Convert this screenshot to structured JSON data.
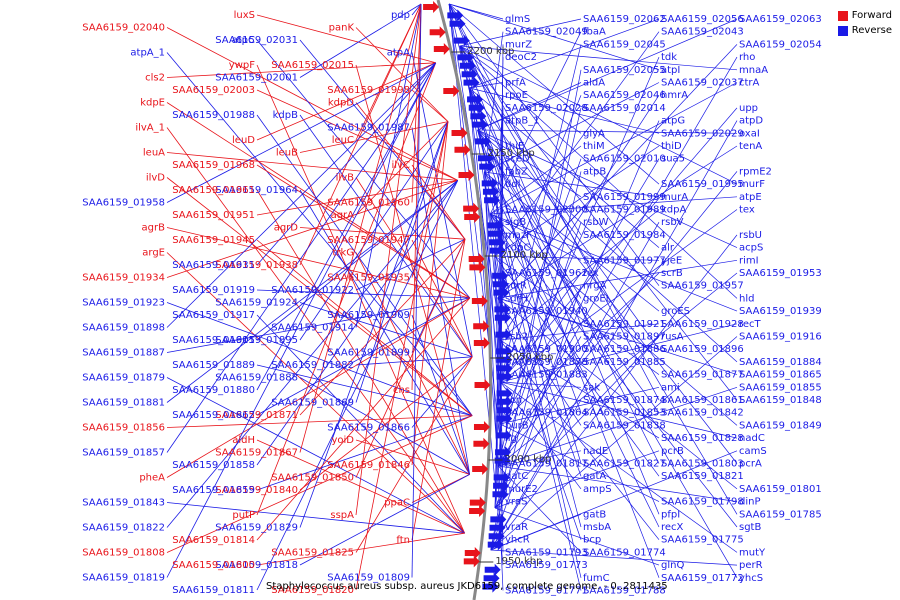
{
  "legend": [
    {
      "label": "Forward",
      "color": "#e8141b"
    },
    {
      "label": "Reverse",
      "color": "#1a1ae6"
    }
  ],
  "caption": "Staphylococcus aureus subsp. aureus JKD6159, complete genome. - 0..2811435",
  "colors": {
    "forward": "#e8141b",
    "reverse": "#1a1ae6",
    "backbone": "#888888"
  },
  "ticks": [
    "2200 kbp",
    "2150 kbp",
    "2100 kbp",
    "2050 kbp",
    "2000 kbp",
    "1950 kbp"
  ],
  "left_labels": [
    {
      "t": "pdp",
      "s": "r"
    },
    {
      "t": "luxS",
      "s": "f"
    },
    {
      "t": "panK",
      "s": "f"
    },
    {
      "t": "SAA6159_02040",
      "s": "f"
    },
    {
      "t": "SAA6159_02031",
      "s": "r"
    },
    {
      "t": "atpC",
      "s": "r"
    },
    {
      "t": "atpA",
      "s": "r"
    },
    {
      "t": "atpA_1",
      "s": "r"
    },
    {
      "t": "SAA6159_02015",
      "s": "f"
    },
    {
      "t": "ywpF",
      "s": "f"
    },
    {
      "t": "SAA6159_02001",
      "s": "r"
    },
    {
      "t": "cls2",
      "s": "f"
    },
    {
      "t": "SAA6159_01998",
      "s": "f"
    },
    {
      "t": "SAA6159_02003",
      "s": "f"
    },
    {
      "t": "kdpD",
      "s": "f"
    },
    {
      "t": "kdpE",
      "s": "f"
    },
    {
      "t": "kdpB",
      "s": "r"
    },
    {
      "t": "SAA6159_01988",
      "s": "r"
    },
    {
      "t": "SAA6159_01987",
      "s": "r"
    },
    {
      "t": "ilvA_1",
      "s": "f"
    },
    {
      "t": "leuC",
      "s": "f"
    },
    {
      "t": "leuD",
      "s": "f"
    },
    {
      "t": "leuB",
      "s": "f"
    },
    {
      "t": "leuA",
      "s": "f"
    },
    {
      "t": "ilvC",
      "s": "f"
    },
    {
      "t": "SAA6159_01968",
      "s": "f"
    },
    {
      "t": "ilvB",
      "s": "f"
    },
    {
      "t": "ilvD",
      "s": "f"
    },
    {
      "t": "SAA6159_01964",
      "s": "r"
    },
    {
      "t": "SAA6159_01961",
      "s": "f"
    },
    {
      "t": "SAA6159_01960",
      "s": "f"
    },
    {
      "t": "SAA6159_01958",
      "s": "r"
    },
    {
      "t": "agrA",
      "s": "f"
    },
    {
      "t": "SAA6159_01951",
      "s": "f"
    },
    {
      "t": "agrD",
      "s": "f"
    },
    {
      "t": "agrB",
      "s": "f"
    },
    {
      "t": "SAA6159_01947",
      "s": "f"
    },
    {
      "t": "SAA6159_01945",
      "s": "f"
    },
    {
      "t": "trkG",
      "s": "f"
    },
    {
      "t": "argE",
      "s": "f"
    },
    {
      "t": "SAA6159_01938",
      "s": "f"
    },
    {
      "t": "SAA6159_01931",
      "s": "r"
    },
    {
      "t": "SAA6159_01935",
      "s": "f"
    },
    {
      "t": "SAA6159_01934",
      "s": "f"
    },
    {
      "t": "SAA6159_01922",
      "s": "r"
    },
    {
      "t": "SAA6159_01919",
      "s": "r"
    },
    {
      "t": "SAA6159_01924",
      "s": "r"
    },
    {
      "t": "SAA6159_01923",
      "s": "r"
    },
    {
      "t": "SAA6159_01909",
      "s": "r"
    },
    {
      "t": "SAA6159_01917",
      "s": "r"
    },
    {
      "t": "SAA6159_01914",
      "s": "r"
    },
    {
      "t": "SAA6159_01898",
      "s": "r"
    },
    {
      "t": "SAA6159_01895",
      "s": "r"
    },
    {
      "t": "SAA6159_01901",
      "s": "r"
    },
    {
      "t": "SAA6159_01899",
      "s": "r"
    },
    {
      "t": "SAA6159_01887",
      "s": "r"
    },
    {
      "t": "SAA6159_01882",
      "s": "r"
    },
    {
      "t": "SAA6159_01889",
      "s": "r"
    },
    {
      "t": "SAA6159_01888",
      "s": "r"
    },
    {
      "t": "SAA6159_01879",
      "s": "r"
    },
    {
      "t": "chs",
      "s": "f"
    },
    {
      "t": "SAA6159_01880",
      "s": "r"
    },
    {
      "t": "SAA6159_01869",
      "s": "r"
    },
    {
      "t": "SAA6159_01881",
      "s": "r"
    },
    {
      "t": "SAA6159_01871",
      "s": "f"
    },
    {
      "t": "SAA6159_01862",
      "s": "r"
    },
    {
      "t": "SAA6159_01866",
      "s": "r"
    },
    {
      "t": "SAA6159_01856",
      "s": "f"
    },
    {
      "t": "yoiD",
      "s": "f"
    },
    {
      "t": "aldH",
      "s": "f"
    },
    {
      "t": "SAA6159_01867",
      "s": "f"
    },
    {
      "t": "SAA6159_01857",
      "s": "r"
    },
    {
      "t": "SAA6159_01846",
      "s": "f"
    },
    {
      "t": "SAA6159_01858",
      "s": "r"
    },
    {
      "t": "SAA6159_01850",
      "s": "f"
    },
    {
      "t": "pheA",
      "s": "f"
    },
    {
      "t": "SAA6159_01840",
      "s": "f"
    },
    {
      "t": "SAA6159_01859",
      "s": "r"
    },
    {
      "t": "ppaC",
      "s": "f"
    },
    {
      "t": "SAA6159_01843",
      "s": "r"
    },
    {
      "t": "sspA",
      "s": "f"
    },
    {
      "t": "putP",
      "s": "f"
    },
    {
      "t": "SAA6159_01829",
      "s": "r"
    },
    {
      "t": "SAA6159_01822",
      "s": "r"
    },
    {
      "t": "ftn",
      "s": "f"
    },
    {
      "t": "SAA6159_01814",
      "s": "f"
    },
    {
      "t": "SAA6159_01825",
      "s": "f"
    },
    {
      "t": "SAA6159_01808",
      "s": "f"
    },
    {
      "t": "SAA6159_01818",
      "s": "r"
    },
    {
      "t": "SAA6159_01800",
      "s": "f"
    },
    {
      "t": "SAA6159_01809",
      "s": "r"
    },
    {
      "t": "SAA6159_01819",
      "s": "r"
    },
    {
      "t": "SAA6159_01820",
      "s": "f"
    },
    {
      "t": "SAA6159_01811",
      "s": "r"
    }
  ],
  "right_labels": [
    "glmS",
    "SAA6159_02062",
    "SAA6159_02056",
    "SAA6159_02063",
    "SAA6159_02049",
    "fbaA",
    "SAA6159_02043",
    "SAA6159_02054",
    "murZ",
    "SAA6159_02045",
    "tdk",
    "rho",
    "deoC2",
    "SAA6159_02055",
    "atpI",
    "mnaA",
    "prfA",
    "aldA",
    "SAA6159_02037",
    "ctrA",
    "rpoE",
    "SAA6159_02046",
    "hmrA",
    "upp",
    "SAA6159_02028",
    "SAA6159_02014",
    "atpG",
    "atpD",
    "atpB_1",
    "glyA",
    "SAA6159_02029",
    "oxaI",
    "thiE",
    "thiM",
    "thiD",
    "tenA",
    "sceD",
    "SAA6159_02010",
    "sua5",
    "rpmE2",
    "fabZ",
    "atpB",
    "SAA6159_01995",
    "murF",
    "ddl",
    "SAA6159_01999",
    "murA",
    "atpE",
    "SAA6159_02000",
    "SAA6159_01989",
    "kdpA",
    "tex",
    "sigB",
    "rsbW",
    "rsbV",
    "rsbU",
    "mazF",
    "SAA6159_01984",
    "alr",
    "acpS",
    "kdpC",
    "SAA6159_01977",
    "yjeE",
    "rimI",
    "SAA6159_01962",
    "rex",
    "scrB",
    "SAA6159_01953",
    "scrR",
    "nrgA",
    "SAA6159_01957",
    "hld",
    "sdrH",
    "groEL",
    "groES",
    "SAA6159_01939",
    "SAA6159_01940",
    "SAA6159_01921",
    "SAA6159_01928",
    "recT",
    "ssb2",
    "SAA6159_01897",
    "rusA",
    "SAA6159_01916",
    "SAA6159_01900",
    "SAA6159_01886",
    "SAA6159_01896",
    "SAA6159_01884",
    "SAA6159_01878",
    "SAA6159_01885",
    "SAA6159_01877",
    "SAA6159_01865",
    "SAA6159_01883",
    "sak",
    "ami",
    "SAA6159_01855",
    "scn",
    "SAA6159_01874",
    "SAA6159_01861",
    "SAA6159_01848",
    "SAA6159_01864",
    "SAA6159_01853",
    "SAA6159_01842",
    "SAA6159_01849",
    "purB",
    "SAA6159_01838",
    "SAA6159_01828",
    "nadC",
    "lig",
    "nadE",
    "pcrB",
    "camS",
    "SAA6159_01817",
    "SAA6159_01827",
    "SAA6159_01803",
    "pcrA",
    "gatC",
    "gatA",
    "SAA6159_01821",
    "SAA6159_01801",
    "murE2",
    "ampS",
    "SAA6159_01798",
    "dinP",
    "vraS",
    "gatB",
    "pfpI",
    "SAA6159_01785",
    "vraR",
    "msbA",
    "recX",
    "sgtB",
    "yhcR",
    "bcp",
    "SAA6159_01775",
    "mutY",
    "SAA6159_01793",
    "SAA6159_01774",
    "glnQ",
    "perR",
    "SAA6159_01773",
    "fumC",
    "SAA6159_01772",
    "yhcS",
    "SAA6159_01771",
    "SAA6159_01788"
  ]
}
